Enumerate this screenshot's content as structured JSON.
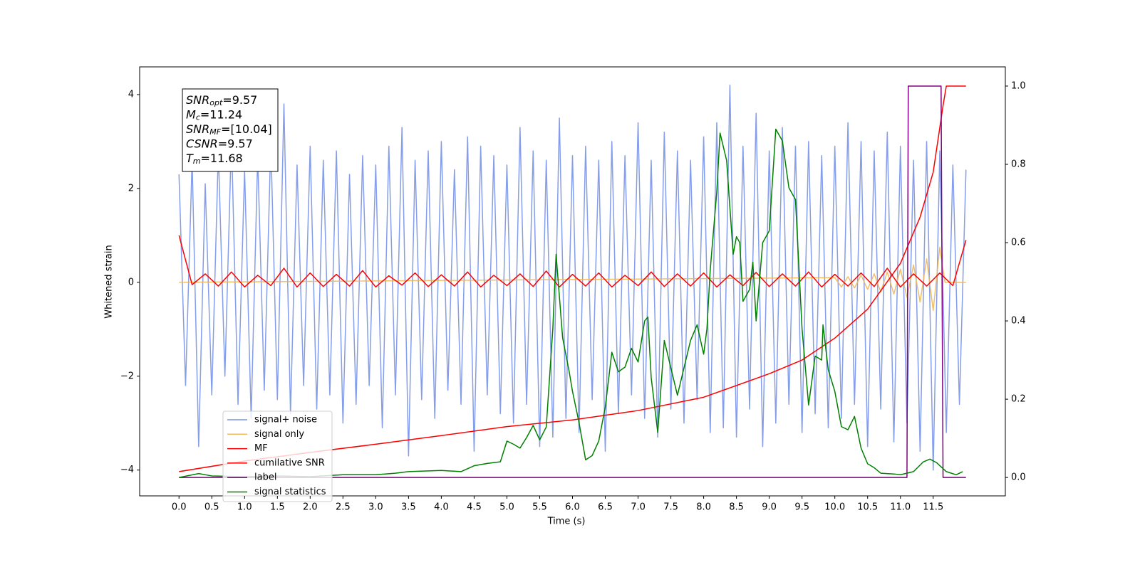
{
  "chart_data": {
    "type": "line",
    "xlabel": "Time (s)",
    "ylabel": "Whitened strain",
    "xlim": [
      -0.6,
      12.6
    ],
    "ylim": [
      -4.55,
      4.59
    ],
    "y2lim": [
      -0.047,
      1.049
    ],
    "xticks": [
      {
        "value": 0,
        "label": "0.0"
      },
      {
        "value": 0.5,
        "label": "0.5"
      },
      {
        "value": 1,
        "label": "1.0"
      },
      {
        "value": 1.5,
        "label": "1.5"
      },
      {
        "value": 2,
        "label": "2.0"
      },
      {
        "value": 2.5,
        "label": "2.5"
      },
      {
        "value": 3,
        "label": "3.0"
      },
      {
        "value": 3.5,
        "label": "3.5"
      },
      {
        "value": 4,
        "label": "4.0"
      },
      {
        "value": 4.5,
        "label": "4.5"
      },
      {
        "value": 5,
        "label": "5.0"
      },
      {
        "value": 5.5,
        "label": "5.5"
      },
      {
        "value": 6,
        "label": "6.0"
      },
      {
        "value": 6.5,
        "label": "6.5"
      },
      {
        "value": 7,
        "label": "7.0"
      },
      {
        "value": 7.5,
        "label": "7.5"
      },
      {
        "value": 8,
        "label": "8.0"
      },
      {
        "value": 8.5,
        "label": "8.5"
      },
      {
        "value": 9,
        "label": "9.0"
      },
      {
        "value": 9.5,
        "label": "9.5"
      },
      {
        "value": 10,
        "label": "10.0"
      },
      {
        "value": 10.5,
        "label": "10.5"
      },
      {
        "value": 11,
        "label": "11.0"
      },
      {
        "value": 11.5,
        "label": "11.5"
      }
    ],
    "yticks": [
      {
        "value": -4,
        "label": "−4"
      },
      {
        "value": -2,
        "label": "−2"
      },
      0,
      2,
      4
    ],
    "y2ticks": [
      {
        "value": 0,
        "label": "0.0"
      },
      {
        "value": 0.2,
        "label": "0.2"
      },
      {
        "value": 0.4,
        "label": "0.4"
      },
      {
        "value": 0.6,
        "label": "0.6"
      },
      {
        "value": 0.8,
        "label": "0.8"
      },
      {
        "value": 1,
        "label": "1.0"
      }
    ],
    "annotations": [
      {
        "main": "SNR",
        "sub": "opt",
        "rest": "=9.57"
      },
      {
        "main": "M",
        "sub": "c",
        "rest": "=11.24"
      },
      {
        "main": "SNR",
        "sub": "MF",
        "rest": "=[10.04]"
      },
      {
        "main": "CSNR",
        "rest": "=9.57"
      },
      {
        "main": "T",
        "sub": "m",
        "rest": "=11.68"
      }
    ],
    "series": [
      {
        "name": "signal+ noise",
        "color": "#7892e8",
        "x": [
          0,
          0.1,
          0.2,
          0.3,
          0.4,
          0.5,
          0.6,
          0.7,
          0.8,
          0.9,
          1,
          1.1,
          1.2,
          1.3,
          1.4,
          1.5,
          1.6,
          1.7,
          1.8,
          1.9,
          2,
          2.1,
          2.2,
          2.3,
          2.4,
          2.5,
          2.6,
          2.7,
          2.8,
          2.9,
          3,
          3.1,
          3.2,
          3.3,
          3.4,
          3.5,
          3.6,
          3.7,
          3.8,
          3.9,
          4,
          4.1,
          4.2,
          4.3,
          4.4,
          4.5,
          4.6,
          4.7,
          4.8,
          4.9,
          5,
          5.1,
          5.2,
          5.3,
          5.4,
          5.5,
          5.6,
          5.7,
          5.8,
          5.9,
          6,
          6.1,
          6.2,
          6.3,
          6.4,
          6.5,
          6.6,
          6.7,
          6.8,
          6.9,
          7,
          7.1,
          7.2,
          7.3,
          7.4,
          7.5,
          7.6,
          7.7,
          7.8,
          7.9,
          8,
          8.1,
          8.2,
          8.3,
          8.4,
          8.5,
          8.6,
          8.7,
          8.8,
          8.9,
          9,
          9.1,
          9.2,
          9.3,
          9.4,
          9.5,
          9.6,
          9.7,
          9.8,
          9.9,
          10,
          10.1,
          10.2,
          10.3,
          10.4,
          10.5,
          10.6,
          10.7,
          10.8,
          10.9,
          11,
          11.1,
          11.2,
          11.3,
          11.4,
          11.5,
          11.6,
          11.7,
          11.8,
          11.9,
          12
        ],
        "values": [
          2.3,
          -2.2,
          2.6,
          -3.5,
          2.1,
          -2.4,
          2.8,
          -2.0,
          3.1,
          -2.6,
          2.4,
          -2.9,
          2.7,
          -2.3,
          3.0,
          -2.5,
          3.8,
          -2.8,
          2.5,
          -2.2,
          2.9,
          -2.7,
          2.6,
          -2.4,
          2.8,
          -3.0,
          2.3,
          -2.6,
          2.7,
          -2.2,
          2.5,
          -3.1,
          2.9,
          -2.4,
          3.3,
          -3.7,
          2.6,
          -2.5,
          2.8,
          -2.9,
          3.0,
          -2.3,
          2.4,
          -2.6,
          3.1,
          -3.6,
          2.9,
          -2.4,
          2.7,
          -2.8,
          2.5,
          -3.0,
          3.3,
          -2.6,
          2.8,
          -3.5,
          2.6,
          -3.3,
          3.5,
          -2.9,
          2.7,
          -3.2,
          2.9,
          -2.5,
          2.6,
          -3.6,
          3.0,
          -2.8,
          2.7,
          -2.4,
          3.4,
          -2.9,
          2.6,
          -3.3,
          3.2,
          -2.7,
          2.8,
          -3.0,
          2.6,
          -2.5,
          3.1,
          -3.2,
          3.4,
          -3.1,
          4.2,
          -3.3,
          2.9,
          -2.7,
          3.6,
          -3.5,
          2.8,
          -3.0,
          3.3,
          -2.6,
          2.9,
          -3.2,
          3.0,
          -2.8,
          2.7,
          -3.1,
          2.9,
          -2.9,
          3.4,
          -2.6,
          3.0,
          -3.5,
          2.8,
          -2.7,
          3.2,
          -3.4,
          2.9,
          -3.0,
          2.6,
          -3.6,
          3.0,
          -4.0,
          2.8,
          -3.2,
          2.5,
          -2.6,
          2.4
        ]
      },
      {
        "name": "signal only",
        "color": "#f0b85a",
        "x": [
          0,
          10,
          10.1,
          10.2,
          10.3,
          10.4,
          10.5,
          10.6,
          10.7,
          10.8,
          10.9,
          11,
          11.1,
          11.2,
          11.3,
          11.4,
          11.5,
          11.6,
          11.68,
          12
        ],
        "values": [
          0,
          0.1,
          -0.1,
          0.12,
          -0.12,
          0.15,
          -0.15,
          0.18,
          -0.2,
          0.22,
          -0.25,
          0.28,
          -0.32,
          0.37,
          -0.42,
          0.5,
          -0.6,
          0.75,
          0,
          0
        ]
      },
      {
        "name": "MF",
        "color": "#ff0000",
        "x": [
          0,
          0.2,
          0.4,
          0.6,
          0.8,
          1,
          1.2,
          1.4,
          1.6,
          1.8,
          2,
          2.2,
          2.4,
          2.6,
          2.8,
          3,
          3.2,
          3.4,
          3.6,
          3.8,
          4,
          4.2,
          4.4,
          4.6,
          4.8,
          5,
          5.2,
          5.4,
          5.6,
          5.8,
          6,
          6.2,
          6.4,
          6.6,
          6.8,
          7,
          7.2,
          7.4,
          7.6,
          7.8,
          8,
          8.2,
          8.4,
          8.6,
          8.8,
          9,
          9.2,
          9.4,
          9.6,
          9.8,
          10,
          10.2,
          10.4,
          10.6,
          10.8,
          11,
          11.2,
          11.4,
          11.6,
          11.8,
          12
        ],
        "values": [
          1.0,
          -0.05,
          0.18,
          -0.08,
          0.22,
          -0.1,
          0.15,
          -0.07,
          0.3,
          -0.1,
          0.2,
          -0.09,
          0.17,
          -0.08,
          0.25,
          -0.1,
          0.14,
          -0.06,
          0.2,
          -0.09,
          0.16,
          -0.08,
          0.22,
          -0.1,
          0.15,
          -0.07,
          0.18,
          -0.09,
          0.24,
          -0.1,
          0.17,
          -0.08,
          0.2,
          -0.1,
          0.15,
          -0.07,
          0.22,
          -0.09,
          0.18,
          -0.08,
          0.2,
          -0.1,
          0.16,
          -0.07,
          0.21,
          -0.09,
          0.18,
          -0.08,
          0.22,
          -0.1,
          0.17,
          -0.08,
          0.2,
          -0.09,
          0.3,
          -0.1,
          0.18,
          -0.08,
          0.2,
          -0.07,
          0.9
        ]
      },
      {
        "name": "cumilative SNR",
        "color": "#ff0000",
        "axis": "y2",
        "x": [
          0,
          1,
          2,
          3,
          4,
          5,
          6,
          7,
          8,
          9,
          9.5,
          10,
          10.5,
          11,
          11.3,
          11.5,
          11.65,
          11.7,
          12
        ],
        "values": [
          0.015,
          0.042,
          0.064,
          0.085,
          0.107,
          0.13,
          0.147,
          0.171,
          0.205,
          0.265,
          0.3,
          0.356,
          0.43,
          0.547,
          0.665,
          0.78,
          0.95,
          1.0,
          1.0
        ]
      },
      {
        "name": "label",
        "color": "#800080",
        "axis": "y2",
        "x": [
          0,
          11.1,
          11.12,
          11.62,
          11.65,
          12
        ],
        "values": [
          0,
          0,
          1,
          1,
          0,
          0
        ]
      },
      {
        "name": "signal statistics",
        "color": "#008000",
        "axis": "y2",
        "x": [
          0,
          0.3,
          0.5,
          1,
          1.5,
          2,
          2.5,
          3,
          3.3,
          3.5,
          4,
          4.3,
          4.5,
          4.7,
          4.9,
          5,
          5.1,
          5.2,
          5.3,
          5.4,
          5.5,
          5.6,
          5.7,
          5.75,
          5.85,
          5.95,
          6,
          6.1,
          6.2,
          6.3,
          6.4,
          6.5,
          6.6,
          6.7,
          6.8,
          6.9,
          7,
          7.1,
          7.15,
          7.2,
          7.3,
          7.4,
          7.5,
          7.6,
          7.7,
          7.8,
          7.9,
          8,
          8.05,
          8.1,
          8.2,
          8.25,
          8.35,
          8.45,
          8.5,
          8.55,
          8.6,
          8.7,
          8.75,
          8.8,
          8.9,
          9,
          9.1,
          9.2,
          9.3,
          9.4,
          9.5,
          9.6,
          9.7,
          9.8,
          9.82,
          9.9,
          10,
          10.1,
          10.2,
          10.3,
          10.4,
          10.5,
          10.6,
          10.7,
          10.9,
          11,
          11.2,
          11.35,
          11.45,
          11.55,
          11.7,
          11.85,
          11.95
        ],
        "values": [
          0.0,
          0.01,
          0.004,
          0.002,
          0.004,
          0.002,
          0.007,
          0.007,
          0.011,
          0.015,
          0.018,
          0.015,
          0.03,
          0.036,
          0.04,
          0.093,
          0.085,
          0.075,
          0.102,
          0.133,
          0.096,
          0.129,
          0.38,
          0.57,
          0.356,
          0.27,
          0.22,
          0.14,
          0.045,
          0.056,
          0.093,
          0.18,
          0.32,
          0.27,
          0.282,
          0.33,
          0.295,
          0.4,
          0.41,
          0.255,
          0.115,
          0.35,
          0.28,
          0.21,
          0.28,
          0.35,
          0.39,
          0.315,
          0.38,
          0.53,
          0.73,
          0.88,
          0.81,
          0.57,
          0.615,
          0.6,
          0.45,
          0.48,
          0.55,
          0.4,
          0.6,
          0.63,
          0.89,
          0.86,
          0.74,
          0.71,
          0.38,
          0.185,
          0.31,
          0.3,
          0.39,
          0.275,
          0.22,
          0.13,
          0.122,
          0.156,
          0.075,
          0.035,
          0.025,
          0.011,
          0.009,
          0.007,
          0.015,
          0.04,
          0.047,
          0.038,
          0.015,
          0.007,
          0.015
        ]
      }
    ]
  }
}
